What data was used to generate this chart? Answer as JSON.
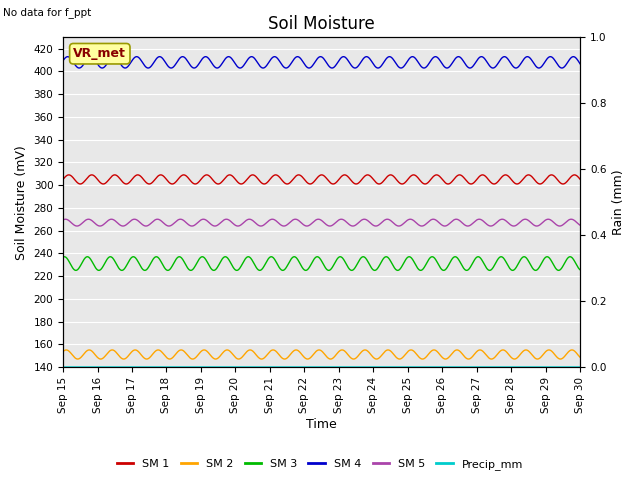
{
  "title": "Soil Moisture",
  "top_left_text": "No data for f_ppt",
  "xlabel": "Time",
  "ylabel_left": "Soil Moisture (mV)",
  "ylabel_right": "Rain (mm)",
  "ylim_left": [
    140,
    430
  ],
  "ylim_right": [
    0.0,
    1.0
  ],
  "yticks_left": [
    140,
    160,
    180,
    200,
    220,
    240,
    260,
    280,
    300,
    320,
    340,
    360,
    380,
    400,
    420
  ],
  "yticks_right_vals": [
    0.0,
    0.2,
    0.4,
    0.6,
    0.8,
    1.0
  ],
  "yticks_right_labels": [
    "0.0",
    "0.2",
    "0.4",
    "0.6",
    "0.8",
    "1.0"
  ],
  "n_days": 16,
  "annotation_text": "VR_met",
  "annotation_facecolor": "#FFFFA0",
  "annotation_edgecolor": "#999900",
  "annotation_textcolor": "#880000",
  "bg_color": "#E8E8E8",
  "series": {
    "SM 1": {
      "color": "#CC0000",
      "base": 305,
      "amp": 4,
      "cycles_per_day": 1.5,
      "phase": 0.0
    },
    "SM 2": {
      "color": "#FFA500",
      "base": 151,
      "amp": 4,
      "cycles_per_day": 1.5,
      "phase": 0.7
    },
    "SM 3": {
      "color": "#00BB00",
      "base": 231,
      "amp": 6,
      "cycles_per_day": 1.5,
      "phase": 1.2
    },
    "SM 4": {
      "color": "#0000CC",
      "base": 408,
      "amp": 5,
      "cycles_per_day": 1.5,
      "phase": 0.3
    },
    "SM 5": {
      "color": "#AA44AA",
      "base": 267,
      "amp": 3,
      "cycles_per_day": 1.5,
      "phase": 0.9
    },
    "Precip_mm": {
      "color": "#00CCCC",
      "base": 0.0,
      "amp": 0,
      "cycles_per_day": 0.0,
      "phase": 0.0
    }
  },
  "xtick_labels": [
    "Sep 15",
    "Sep 16",
    "Sep 17",
    "Sep 18",
    "Sep 19",
    "Sep 20",
    "Sep 21",
    "Sep 22",
    "Sep 23",
    "Sep 24",
    "Sep 25",
    "Sep 26",
    "Sep 27",
    "Sep 28",
    "Sep 29",
    "Sep 30"
  ],
  "title_fontsize": 12,
  "axis_label_fontsize": 9,
  "tick_fontsize": 7.5,
  "legend_fontsize": 8
}
